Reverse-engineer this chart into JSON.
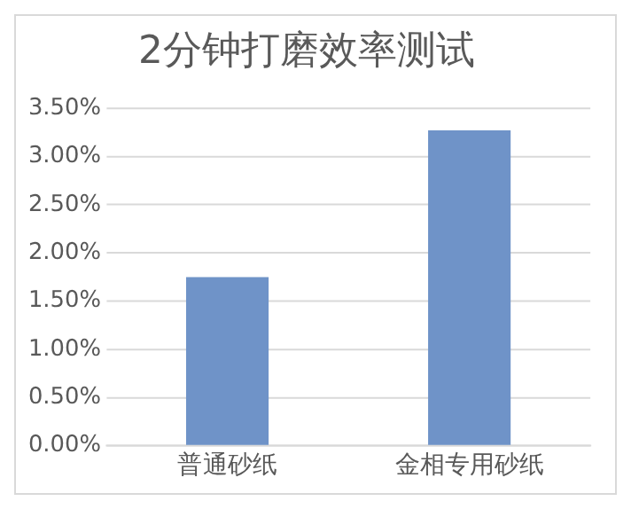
{
  "chart_data": {
    "type": "bar",
    "title": "2分钟打磨效率测试",
    "categories": [
      "普通砂纸",
      "金相专用砂纸"
    ],
    "values": [
      1.75,
      3.27
    ],
    "color": "#6f93c8",
    "ylim": [
      0,
      3.5
    ],
    "yticks": [
      {
        "value": 0,
        "label": "0.00%"
      },
      {
        "value": 0.5,
        "label": "0.50%"
      },
      {
        "value": 1,
        "label": "1.00%"
      },
      {
        "value": 1.5,
        "label": "1.50%"
      },
      {
        "value": 2,
        "label": "2.00%"
      },
      {
        "value": 2.5,
        "label": "2.50%"
      },
      {
        "value": 3,
        "label": "3.00%"
      },
      {
        "value": 3.5,
        "label": "3.50%"
      }
    ],
    "grid": "y",
    "legend": false
  }
}
